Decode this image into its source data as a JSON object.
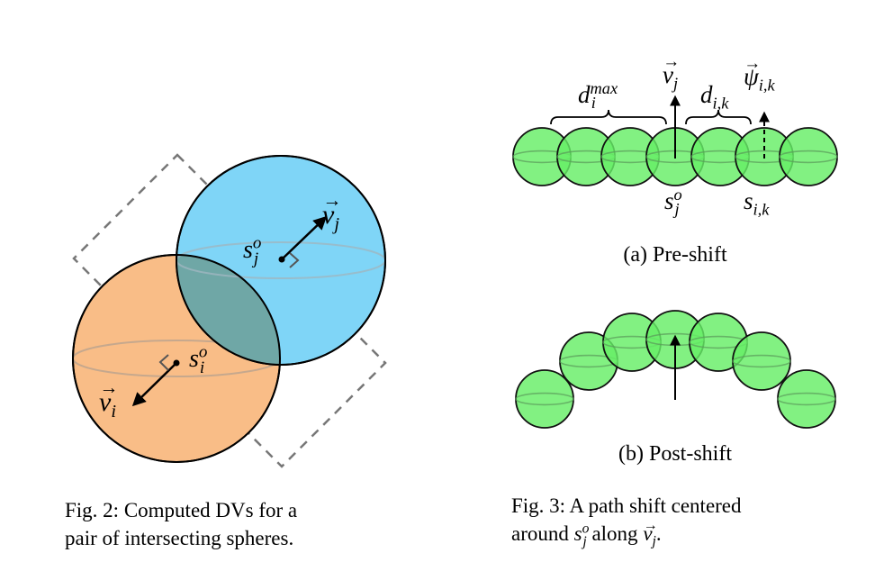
{
  "fig2": {
    "label_v_j": "v",
    "label_v_j_sub": "j",
    "label_s_j": "s",
    "label_s_j_sup": "o",
    "label_s_j_sub": "j",
    "label_s_i": "s",
    "label_s_i_sup": "o",
    "label_s_i_sub": "i",
    "label_v_i": "v",
    "label_v_i_sub": "i",
    "caption_line1": "Fig. 2: Computed DVs for a",
    "caption_line2": "pair of intersecting spheres.",
    "colors": {
      "sphere_i": "#F9BD87",
      "sphere_j": "#7FD5F7",
      "overlap": "#6FA7A6",
      "box": "#777777"
    }
  },
  "fig3": {
    "label_d_max": "d",
    "label_d_max_sub": "i",
    "label_d_max_sup": "max",
    "label_v_j": "v",
    "label_v_j_sub": "j",
    "label_d_ik": "d",
    "label_d_ik_sub": "i,k",
    "label_psi": "ψ",
    "label_psi_sub": "i,k",
    "label_s_j": "s",
    "label_s_j_sup": "o",
    "label_s_j_sub": "j",
    "label_s_ik": "s",
    "label_s_ik_sub": "i,k",
    "subcaption_a": "(a) Pre-shift",
    "subcaption_b": "(b) Post-shift",
    "caption_line1": "Fig. 3: A path shift centered",
    "caption_line2_a": "around ",
    "caption_line2_s": "s",
    "caption_line2_s_sup": "o",
    "caption_line2_s_sub": "j",
    "caption_line2_b": " along ",
    "caption_line2_v": "v",
    "caption_line2_v_sub": "j",
    "caption_line2_end": ".",
    "colors": {
      "sphere": "#66EE66",
      "sphere_stroke": "#111111"
    }
  }
}
